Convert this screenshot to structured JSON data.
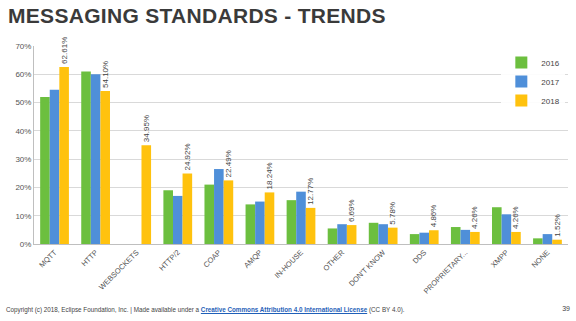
{
  "chart_data": {
    "type": "bar",
    "title": "MESSAGING STANDARDS - TRENDS",
    "categories": [
      "MQTT",
      "HTTP",
      "WEBSOCKETS",
      "HTTP/2",
      "COAP",
      "AMQP",
      "IN-HOUSE",
      "OTHER",
      "DON'T KNOW",
      "DDS",
      "PROPRIETARY...",
      "XMPP",
      "NONE"
    ],
    "series": [
      {
        "name": "2016",
        "color": "#6cbf3f",
        "values": [
          52,
          61,
          null,
          19,
          21,
          14,
          15.5,
          5.5,
          7.5,
          3.5,
          6,
          13,
          2
        ]
      },
      {
        "name": "2017",
        "color": "#4f8fd9",
        "values": [
          54.5,
          60,
          null,
          17,
          26.5,
          15,
          18.5,
          7,
          7,
          4,
          5,
          10.5,
          3.5
        ]
      },
      {
        "name": "2018",
        "color": "#ffc20e",
        "values": [
          62.61,
          54.1,
          34.95,
          24.92,
          22.49,
          18.24,
          12.77,
          6.69,
          5.78,
          4.86,
          4.26,
          4.26,
          1.52
        ],
        "data_labels": true,
        "value_labels": [
          "62.61%",
          "54.10%",
          "34.95%",
          "24.92%",
          "22.49%",
          "18.24%",
          "12.77%",
          "6.69%",
          "5.78%",
          "4.86%",
          "4.26%",
          "4.26%",
          "1.52%"
        ]
      }
    ],
    "ylim": [
      0,
      70
    ],
    "yticks": [
      {
        "value": 0,
        "label": "0%"
      },
      {
        "value": 10,
        "label": "10%"
      },
      {
        "value": 20,
        "label": "20%"
      },
      {
        "value": 30,
        "label": "30%"
      },
      {
        "value": 40,
        "label": "40%"
      },
      {
        "value": 50,
        "label": "50%"
      },
      {
        "value": 60,
        "label": "60%"
      },
      {
        "value": 70,
        "label": "70%"
      }
    ],
    "grid": true,
    "legend": "top-right"
  },
  "footer": {
    "text": "Copyright (c) 2018, Eclipse Foundation, Inc. | Made available under a ",
    "link": "Creative Commons Attribution 4.0 International License",
    "text_after": " (CC BY 4.0)."
  },
  "page_number": "39"
}
